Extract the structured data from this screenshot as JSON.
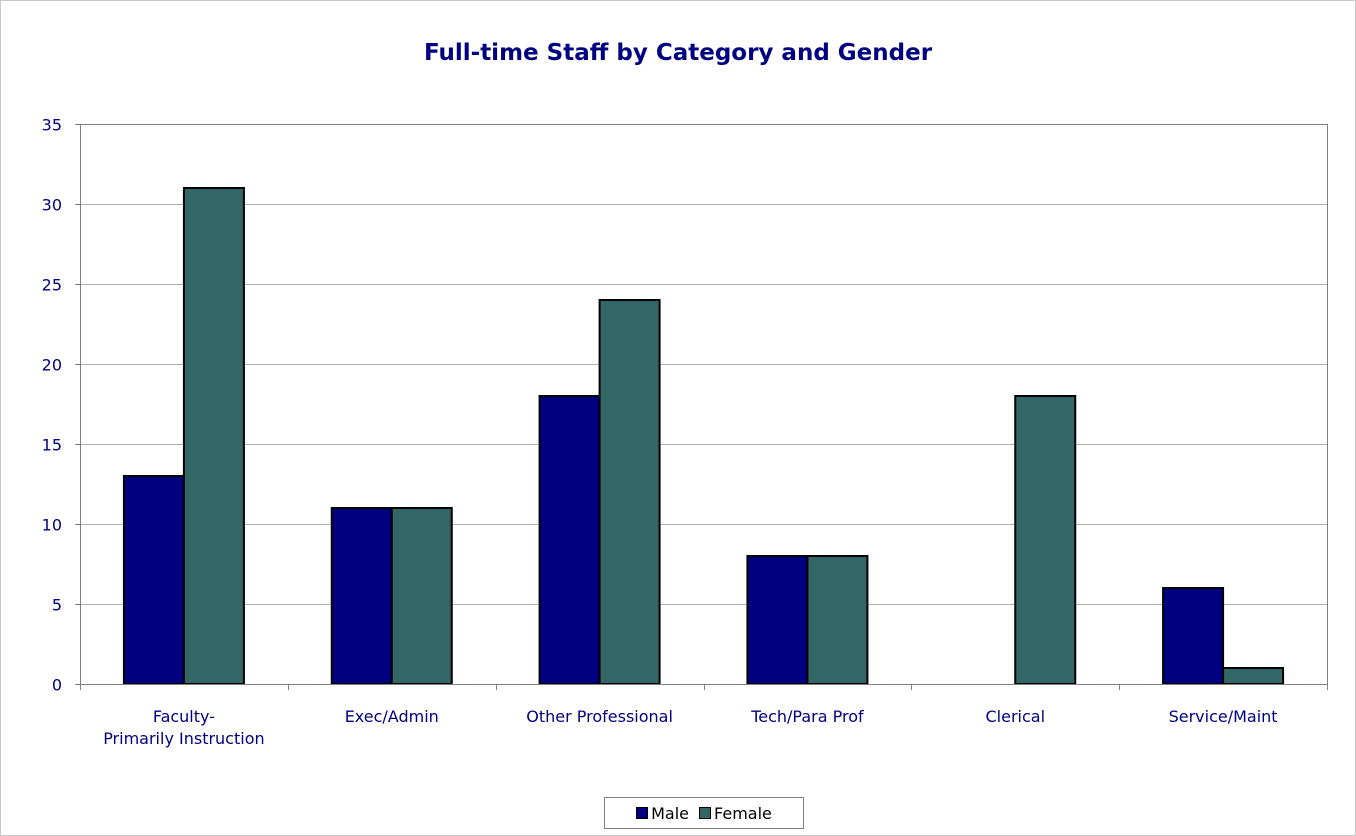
{
  "chart_data": {
    "type": "bar",
    "title": "Full-time Staff by Category and Gender",
    "xlabel": "",
    "ylabel": "",
    "categories": [
      [
        "Faculty-",
        "Primarily Instruction"
      ],
      [
        "Exec/Admin"
      ],
      [
        "Other Professional"
      ],
      [
        "Tech/Para Prof"
      ],
      [
        "Clerical"
      ],
      [
        "Service/Maint"
      ]
    ],
    "series": [
      {
        "name": "Male",
        "color": "#000080",
        "values": [
          13,
          11,
          18,
          8,
          0,
          6
        ]
      },
      {
        "name": "Female",
        "color": "#336666",
        "values": [
          31,
          11,
          24,
          8,
          18,
          1
        ]
      }
    ],
    "ylim": [
      0,
      35
    ],
    "yticks": [
      0,
      5,
      10,
      15,
      20,
      25,
      30,
      35
    ],
    "grid": true,
    "legend_position": "bottom"
  },
  "legend": {
    "male_label": "Male",
    "female_label": "Female",
    "male_color": "#000080",
    "female_color": "#336666"
  }
}
